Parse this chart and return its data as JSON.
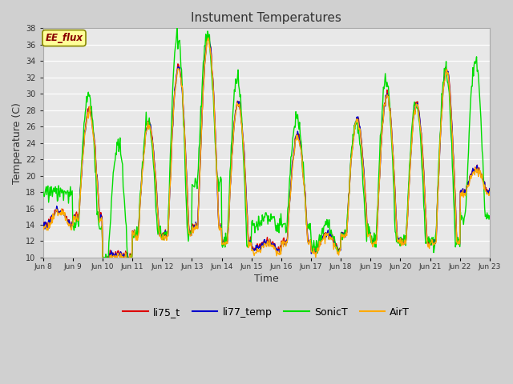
{
  "title": "Instument Temperatures",
  "xlabel": "Time",
  "ylabel": "Temperature (C)",
  "ylim": [
    10,
    38
  ],
  "fig_bg": "#d0d0d0",
  "plot_bg": "#e8e8e8",
  "grid_color": "#ffffff",
  "annotation_text": "EE_flux",
  "annotation_color": "#880000",
  "annotation_bg": "#ffff99",
  "annotation_border": "#888800",
  "yticks": [
    10,
    12,
    14,
    16,
    18,
    20,
    22,
    24,
    26,
    28,
    30,
    32,
    34,
    36,
    38
  ],
  "xtick_labels": [
    "Jun 8",
    "Jun 9",
    "Jun 10",
    "Jun 11",
    "Jun 12",
    "Jun 13",
    "Jun 14",
    "Jun 15",
    "Jun 16",
    "Jun 17",
    "Jun 18",
    "Jun 19",
    "Jun 20",
    "Jun 21",
    "Jun 22",
    "Jun 23"
  ],
  "legend_labels": [
    "li75_t",
    "li77_temp",
    "SonicT",
    "AirT"
  ],
  "legend_colors": [
    "#dd0000",
    "#0000cc",
    "#00dd00",
    "#ffaa00"
  ],
  "n_days": 15,
  "pts_per_day": 48,
  "day_peaks": [
    16,
    28,
    10.5,
    26.5,
    33.5,
    37,
    29,
    12,
    25,
    13,
    27,
    30,
    29,
    33,
    21
  ],
  "day_mins": [
    14,
    15,
    10,
    13,
    13,
    14,
    12,
    11,
    12,
    11,
    13,
    12,
    12,
    12,
    18
  ],
  "sonic_peaks": [
    18,
    30,
    24,
    26.5,
    37.5,
    37,
    32,
    15,
    27,
    14,
    26.5,
    32,
    29,
    33,
    34
  ],
  "sonic_mins": [
    18,
    14,
    10,
    13,
    13,
    19,
    12,
    14,
    14,
    11,
    13,
    12,
    12,
    12,
    15
  ],
  "seed": 12
}
